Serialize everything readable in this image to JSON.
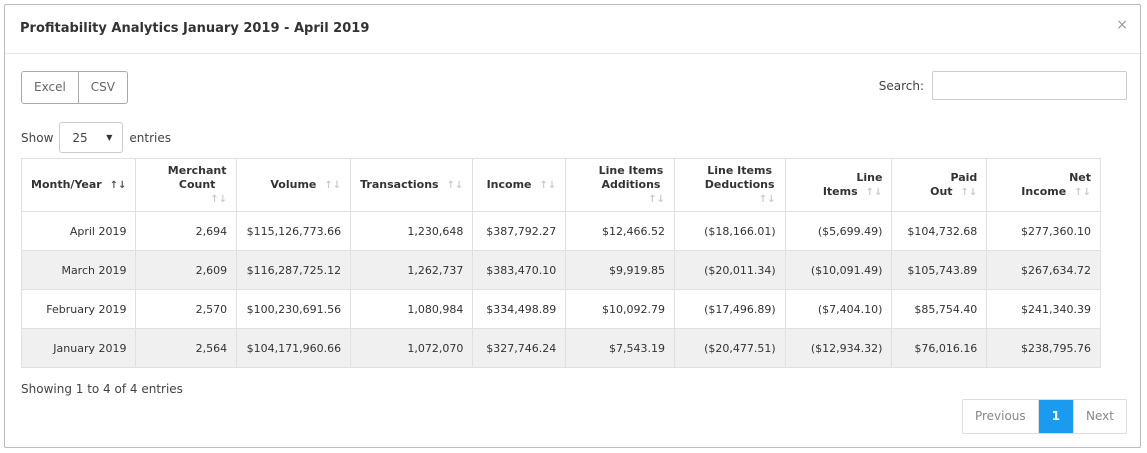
{
  "modal": {
    "title": "Profitability Analytics January 2019 - April 2019",
    "close": "×"
  },
  "buttons": {
    "excel": "Excel",
    "csv": "CSV"
  },
  "search": {
    "label": "Search:",
    "value": "",
    "placeholder": ""
  },
  "length": {
    "show": "Show",
    "value": "25",
    "entries": "entries"
  },
  "table": {
    "headers": [
      "Month/Year",
      "Merchant Count",
      "Volume",
      "Transactions",
      "Income",
      "Line Items Additions",
      "Line Items Deductions",
      "Line Items",
      "Paid Out",
      "Net Income"
    ],
    "rows": [
      [
        "April 2019",
        "2,694",
        "$115,126,773.66",
        "1,230,648",
        "$387,792.27",
        "$12,466.52",
        "($18,166.01)",
        "($5,699.49)",
        "$104,732.68",
        "$277,360.10"
      ],
      [
        "March 2019",
        "2,609",
        "$116,287,725.12",
        "1,262,737",
        "$383,470.10",
        "$9,919.85",
        "($20,011.34)",
        "($10,091.49)",
        "$105,743.89",
        "$267,634.72"
      ],
      [
        "February 2019",
        "2,570",
        "$100,230,691.56",
        "1,080,984",
        "$334,498.89",
        "$10,092.79",
        "($17,496.89)",
        "($7,404.10)",
        "$85,754.40",
        "$241,340.39"
      ],
      [
        "January 2019",
        "2,564",
        "$104,171,960.66",
        "1,072,070",
        "$327,746.24",
        "$7,543.19",
        "($20,477.51)",
        "($12,934.32)",
        "$76,016.16",
        "$238,795.76"
      ]
    ]
  },
  "info": "Showing 1 to 4 of 4 entries",
  "pagination": {
    "previous": "Previous",
    "current": "1",
    "next": "Next"
  },
  "colors": {
    "negative": "#e0302d",
    "active_page": "#1a9bf0"
  }
}
